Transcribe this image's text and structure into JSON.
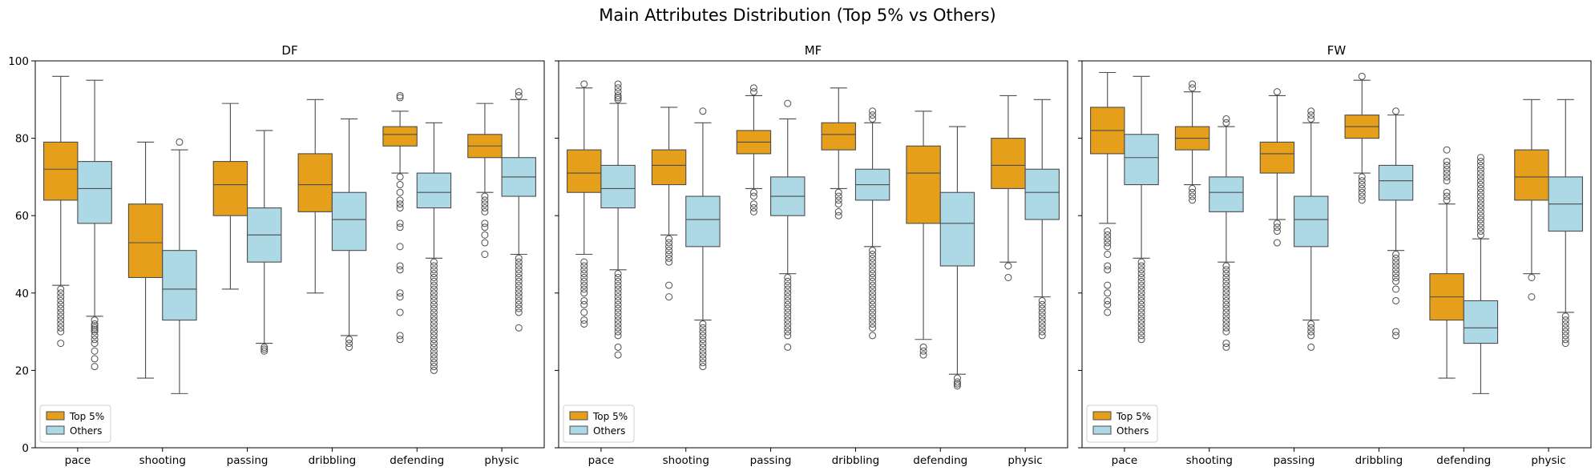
{
  "suptitle": "Main Attributes Distribution (Top 5% vs Others)",
  "colors": {
    "top": "#E69F1A",
    "others": "#ADD8E6",
    "line": "#4D4D4D"
  },
  "chart_data": {
    "type": "box",
    "groups": [
      "Top 5%",
      "Others"
    ],
    "categories": [
      "pace",
      "shooting",
      "passing",
      "dribbling",
      "defending",
      "physic"
    ],
    "ylim": [
      0,
      100
    ],
    "yticks": [
      0,
      20,
      40,
      60,
      80,
      100
    ],
    "grid": false,
    "legend": {
      "position": "lower-left",
      "entries": [
        "Top 5%",
        "Others"
      ]
    },
    "panels": [
      {
        "title": "DF",
        "boxes": [
          {
            "cat": "pace",
            "group": "Top 5%",
            "q1": 64,
            "median": 72,
            "q3": 79,
            "lo": 42,
            "hi": 96,
            "outliers": [
              41,
              40,
              39,
              38,
              37,
              36,
              35,
              34,
              33,
              32,
              31,
              30,
              27
            ]
          },
          {
            "cat": "pace",
            "group": "Others",
            "q1": 58,
            "median": 67,
            "q3": 74,
            "lo": 34,
            "hi": 95,
            "outliers": [
              33,
              32,
              31.5,
              31,
              30.5,
              30,
              29,
              28,
              27,
              25,
              23,
              21
            ]
          },
          {
            "cat": "shooting",
            "group": "Top 5%",
            "q1": 44,
            "median": 53,
            "q3": 63,
            "lo": 18,
            "hi": 79,
            "outliers": []
          },
          {
            "cat": "shooting",
            "group": "Others",
            "q1": 33,
            "median": 41,
            "q3": 51,
            "lo": 14,
            "hi": 77,
            "outliers": [
              79
            ]
          },
          {
            "cat": "passing",
            "group": "Top 5%",
            "q1": 60,
            "median": 68,
            "q3": 74,
            "lo": 41,
            "hi": 89,
            "outliers": []
          },
          {
            "cat": "passing",
            "group": "Others",
            "q1": 48,
            "median": 55,
            "q3": 62,
            "lo": 27,
            "hi": 82,
            "outliers": [
              26,
              25.5,
              25
            ]
          },
          {
            "cat": "dribbling",
            "group": "Top 5%",
            "q1": 61,
            "median": 68,
            "q3": 76,
            "lo": 40,
            "hi": 90,
            "outliers": []
          },
          {
            "cat": "dribbling",
            "group": "Others",
            "q1": 51,
            "median": 59,
            "q3": 66,
            "lo": 29,
            "hi": 85,
            "outliers": [
              28,
              27,
              26
            ]
          },
          {
            "cat": "defending",
            "group": "Top 5%",
            "q1": 78,
            "median": 81,
            "q3": 83,
            "lo": 71,
            "hi": 87,
            "outliers": [
              91,
              90.5,
              70,
              68,
              66,
              64,
              63,
              62,
              58,
              57,
              52,
              47,
              46,
              40,
              39,
              35,
              29,
              28
            ]
          },
          {
            "cat": "defending",
            "group": "Others",
            "q1": 62,
            "median": 66,
            "q3": 71,
            "lo": 49,
            "hi": 84,
            "outliers": [
              48,
              47,
              46,
              45,
              44,
              43,
              42,
              41,
              40,
              39,
              38,
              37,
              36,
              35,
              34,
              33,
              32,
              31,
              30,
              29,
              28,
              27,
              26,
              25,
              24,
              23,
              22,
              21,
              20
            ]
          },
          {
            "cat": "physic",
            "group": "Top 5%",
            "q1": 75,
            "median": 78,
            "q3": 81,
            "lo": 66,
            "hi": 89,
            "outliers": [
              65,
              64,
              63,
              62,
              61,
              58,
              57,
              55,
              53,
              50
            ]
          },
          {
            "cat": "physic",
            "group": "Others",
            "q1": 65,
            "median": 70,
            "q3": 75,
            "lo": 50,
            "hi": 90,
            "outliers": [
              92,
              91,
              49,
              48,
              47,
              46,
              45,
              44,
              43,
              42,
              41,
              40,
              39,
              38,
              37,
              36,
              35,
              31
            ]
          }
        ]
      },
      {
        "title": "MF",
        "boxes": [
          {
            "cat": "pace",
            "group": "Top 5%",
            "q1": 66,
            "median": 71,
            "q3": 77,
            "lo": 50,
            "hi": 93,
            "outliers": [
              94,
              48,
              47,
              46,
              45,
              44,
              43,
              42,
              41,
              40,
              38,
              37,
              35,
              33,
              32
            ]
          },
          {
            "cat": "pace",
            "group": "Others",
            "q1": 62,
            "median": 67,
            "q3": 73,
            "lo": 46,
            "hi": 89,
            "outliers": [
              94,
              93,
              92,
              91,
              90.5,
              90,
              45,
              44,
              43,
              42,
              41,
              40,
              39,
              38,
              37,
              36,
              35,
              34,
              33,
              32,
              31,
              30,
              29,
              26,
              24
            ]
          },
          {
            "cat": "shooting",
            "group": "Top 5%",
            "q1": 68,
            "median": 73,
            "q3": 77,
            "lo": 55,
            "hi": 88,
            "outliers": [
              54,
              53,
              52,
              51,
              50,
              49,
              48,
              42,
              39
            ]
          },
          {
            "cat": "shooting",
            "group": "Others",
            "q1": 52,
            "median": 59,
            "q3": 65,
            "lo": 33,
            "hi": 84,
            "outliers": [
              87,
              32,
              31,
              30,
              29,
              28,
              27,
              26,
              25,
              24,
              23,
              22,
              21
            ]
          },
          {
            "cat": "passing",
            "group": "Top 5%",
            "q1": 76,
            "median": 79,
            "q3": 82,
            "lo": 67,
            "hi": 91,
            "outliers": [
              93,
              92,
              66,
              65,
              63,
              62,
              61
            ]
          },
          {
            "cat": "passing",
            "group": "Others",
            "q1": 60,
            "median": 65,
            "q3": 70,
            "lo": 45,
            "hi": 85,
            "outliers": [
              89,
              44,
              43,
              42,
              41,
              40,
              39,
              38,
              37,
              36,
              35,
              34,
              33,
              32,
              31,
              30,
              29,
              26
            ]
          },
          {
            "cat": "dribbling",
            "group": "Top 5%",
            "q1": 77,
            "median": 81,
            "q3": 84,
            "lo": 67,
            "hi": 93,
            "outliers": [
              66,
              65,
              64,
              63,
              61,
              60
            ]
          },
          {
            "cat": "dribbling",
            "group": "Others",
            "q1": 64,
            "median": 68,
            "q3": 72,
            "lo": 52,
            "hi": 84,
            "outliers": [
              87,
              86,
              85,
              51,
              50,
              49,
              48,
              47,
              46,
              45,
              44,
              43,
              42,
              41,
              40,
              39,
              38,
              37,
              36,
              35,
              34,
              33,
              32,
              31,
              29
            ]
          },
          {
            "cat": "defending",
            "group": "Top 5%",
            "q1": 58,
            "median": 71,
            "q3": 78,
            "lo": 28,
            "hi": 87,
            "outliers": [
              26,
              25,
              24
            ]
          },
          {
            "cat": "defending",
            "group": "Others",
            "q1": 47,
            "median": 58,
            "q3": 66,
            "lo": 19,
            "hi": 83,
            "outliers": [
              18,
              17,
              16.5,
              16
            ]
          },
          {
            "cat": "physic",
            "group": "Top 5%",
            "q1": 67,
            "median": 73,
            "q3": 80,
            "lo": 48,
            "hi": 91,
            "outliers": [
              47,
              44
            ]
          },
          {
            "cat": "physic",
            "group": "Others",
            "q1": 59,
            "median": 66,
            "q3": 72,
            "lo": 39,
            "hi": 90,
            "outliers": [
              38,
              37,
              36,
              35,
              34,
              33,
              32,
              31,
              30,
              29
            ]
          }
        ]
      },
      {
        "title": "FW",
        "boxes": [
          {
            "cat": "pace",
            "group": "Top 5%",
            "q1": 76,
            "median": 82,
            "q3": 88,
            "lo": 58,
            "hi": 97,
            "outliers": [
              56,
              55,
              54,
              53,
              52,
              50,
              47,
              46,
              42,
              40,
              38,
              37,
              35
            ]
          },
          {
            "cat": "pace",
            "group": "Others",
            "q1": 68,
            "median": 75,
            "q3": 81,
            "lo": 49,
            "hi": 96,
            "outliers": [
              48,
              47,
              46,
              45,
              44,
              43,
              42,
              41,
              40,
              39,
              38,
              37,
              36,
              35,
              34,
              33,
              32,
              31,
              30,
              29,
              28
            ]
          },
          {
            "cat": "shooting",
            "group": "Top 5%",
            "q1": 77,
            "median": 80,
            "q3": 83,
            "lo": 68,
            "hi": 92,
            "outliers": [
              94,
              93,
              67,
              66,
              65,
              64
            ]
          },
          {
            "cat": "shooting",
            "group": "Others",
            "q1": 61,
            "median": 66,
            "q3": 70,
            "lo": 48,
            "hi": 83,
            "outliers": [
              85,
              84,
              47,
              46,
              45,
              44,
              43,
              42,
              41,
              40,
              39,
              38,
              37,
              36,
              35,
              34,
              33,
              32,
              31,
              30,
              27,
              26
            ]
          },
          {
            "cat": "passing",
            "group": "Top 5%",
            "q1": 71,
            "median": 76,
            "q3": 79,
            "lo": 59,
            "hi": 91,
            "outliers": [
              92,
              58,
              57,
              56,
              53
            ]
          },
          {
            "cat": "passing",
            "group": "Others",
            "q1": 52,
            "median": 59,
            "q3": 65,
            "lo": 33,
            "hi": 84,
            "outliers": [
              87,
              86,
              85,
              32,
              31,
              30,
              29,
              26
            ]
          },
          {
            "cat": "dribbling",
            "group": "Top 5%",
            "q1": 80,
            "median": 83,
            "q3": 86,
            "lo": 71,
            "hi": 95,
            "outliers": [
              96,
              70,
              69,
              68,
              67,
              66,
              65,
              64
            ]
          },
          {
            "cat": "dribbling",
            "group": "Others",
            "q1": 64,
            "median": 69,
            "q3": 73,
            "lo": 51,
            "hi": 86,
            "outliers": [
              87,
              50,
              49,
              48,
              47,
              46,
              45,
              44,
              43,
              41,
              38,
              30,
              29
            ]
          },
          {
            "cat": "defending",
            "group": "Top 5%",
            "q1": 33,
            "median": 39,
            "q3": 45,
            "lo": 18,
            "hi": 63,
            "outliers": [
              77,
              74,
              73,
              72,
              71,
              70,
              69,
              66,
              65,
              64
            ]
          },
          {
            "cat": "defending",
            "group": "Others",
            "q1": 27,
            "median": 31,
            "q3": 38,
            "lo": 14,
            "hi": 54,
            "outliers": [
              75,
              74,
              73,
              72,
              71,
              70,
              69,
              68,
              67,
              66,
              65,
              64,
              63,
              62,
              61,
              60,
              59,
              58,
              57,
              56,
              55
            ]
          },
          {
            "cat": "physic",
            "group": "Top 5%",
            "q1": 64,
            "median": 70,
            "q3": 77,
            "lo": 45,
            "hi": 90,
            "outliers": [
              44,
              39
            ]
          },
          {
            "cat": "physic",
            "group": "Others",
            "q1": 56,
            "median": 63,
            "q3": 70,
            "lo": 35,
            "hi": 90,
            "outliers": [
              34,
              33,
              32,
              31,
              30,
              29,
              28,
              27
            ]
          }
        ]
      }
    ]
  }
}
